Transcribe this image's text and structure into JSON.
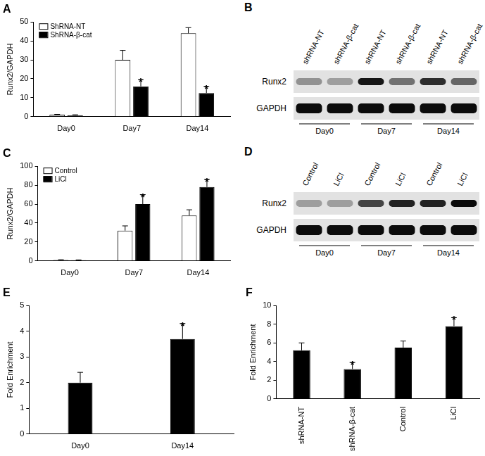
{
  "chart_data": [
    {
      "type": "bar",
      "title": "A",
      "ylabel": "Runx2/GAPDH",
      "categories": [
        "Day0",
        "Day7",
        "Day14"
      ],
      "series": [
        {
          "name": "ShRNA-NT",
          "color": "#ffffff",
          "values": [
            1,
            30,
            44
          ],
          "errors": [
            0.2,
            5,
            3
          ],
          "significance": [
            null,
            null,
            null
          ]
        },
        {
          "name": "ShRNA-β-cat",
          "color": "#000000",
          "values": [
            0.8,
            16,
            12.5
          ],
          "errors": [
            0.2,
            3.5,
            3.5
          ],
          "significance": [
            null,
            "*",
            "*"
          ]
        }
      ],
      "ylim": [
        0,
        50
      ],
      "yticks": [
        0,
        10,
        20,
        30,
        40,
        50
      ],
      "grid": false,
      "legend": "upper left"
    },
    {
      "type": "bar",
      "title": "C",
      "ylabel": "Runx2/GAPDH",
      "categories": [
        "Day0",
        "Day7",
        "Day14"
      ],
      "series": [
        {
          "name": "Control",
          "color": "#ffffff",
          "values": [
            1,
            32,
            48
          ],
          "errors": [
            0.3,
            5,
            6
          ],
          "significance": [
            null,
            null,
            null
          ]
        },
        {
          "name": "LiCl",
          "color": "#000000",
          "values": [
            0.8,
            60,
            78
          ],
          "errors": [
            0.3,
            10,
            8
          ],
          "significance": [
            null,
            "*",
            "*"
          ]
        }
      ],
      "ylim": [
        0,
        100
      ],
      "yticks": [
        0,
        20,
        40,
        60,
        80,
        100
      ],
      "grid": false,
      "legend": "upper left"
    },
    {
      "type": "bar",
      "title": "E",
      "ylabel": "Fold Enrichment",
      "categories": [
        "Day0",
        "Day14"
      ],
      "values": [
        2.0,
        3.7
      ],
      "errors": [
        0.4,
        0.6
      ],
      "significance": [
        null,
        "*"
      ],
      "color": "#000000",
      "ylim": [
        0,
        5
      ],
      "yticks": [
        0,
        1,
        2,
        3,
        4,
        5
      ],
      "grid": false
    },
    {
      "type": "bar",
      "title": "F",
      "ylabel": "Fold Enrichment",
      "categories": [
        "shRNA-NT",
        "shRNA-β-cat",
        "Control",
        "LiCl"
      ],
      "values": [
        5.2,
        3.2,
        5.5,
        7.8
      ],
      "errors": [
        0.8,
        0.7,
        0.7,
        0.9
      ],
      "significance": [
        null,
        "*",
        null,
        "*"
      ],
      "color": "#000000",
      "ylim": [
        0,
        10
      ],
      "yticks": [
        0,
        2,
        4,
        6,
        8,
        10
      ],
      "grid": false
    }
  ],
  "blots": [
    {
      "title": "B",
      "lanes": [
        "shRNA-NT",
        "shRNA-β-cat",
        "shRNA-NT",
        "shRNA-β-cat",
        "shRNA-NT",
        "shRNA-β-cat"
      ],
      "groups": [
        "Day0",
        "Day7",
        "Day14"
      ],
      "rows": [
        {
          "label": "Runx2",
          "intensity": [
            0.35,
            0.3,
            0.9,
            0.5,
            0.8,
            0.55
          ]
        },
        {
          "label": "GAPDH",
          "intensity": [
            0.95,
            0.95,
            0.95,
            0.95,
            0.95,
            0.95
          ]
        }
      ]
    },
    {
      "title": "D",
      "lanes": [
        "Control",
        "LiCl",
        "Control",
        "LiCl",
        "Control",
        "LiCl"
      ],
      "groups": [
        "Day0",
        "Day7",
        "Day14"
      ],
      "rows": [
        {
          "label": "Runx2",
          "intensity": [
            0.3,
            0.3,
            0.7,
            0.85,
            0.85,
            0.95
          ]
        },
        {
          "label": "GAPDH",
          "intensity": [
            0.95,
            0.95,
            0.95,
            0.95,
            0.95,
            0.95
          ]
        }
      ]
    }
  ]
}
